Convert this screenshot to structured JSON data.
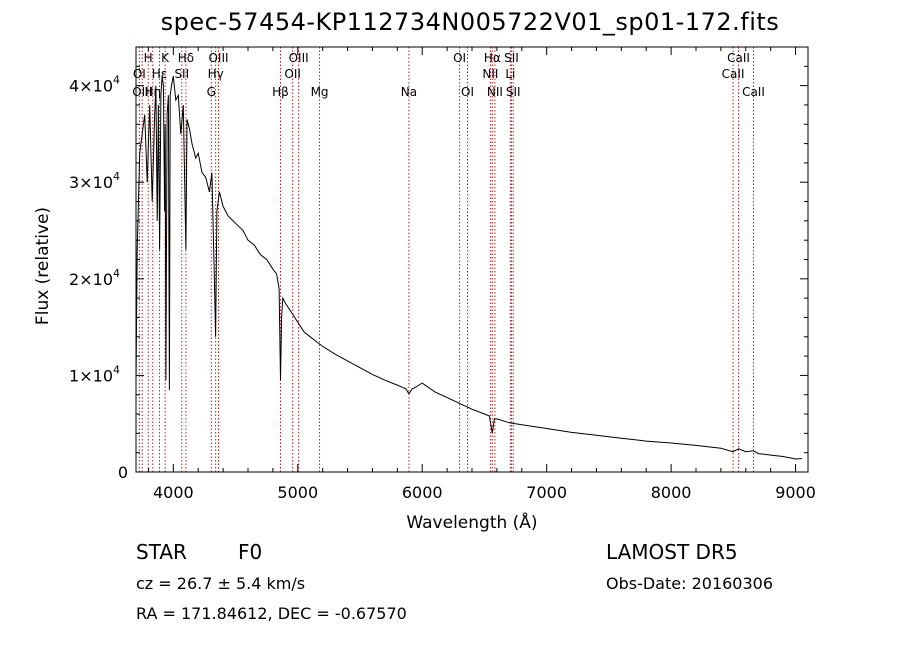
{
  "title": "spec-57454-KP112734N005722V01_sp01-172.fits",
  "info": {
    "class_label": "STAR",
    "subclass": "F0",
    "redshift": "cz = 26.7 ± 5.4 km/s",
    "coords": "RA = 171.84612, DEC =  -0.67570",
    "survey": "LAMOST  DR5",
    "obs_date": "Obs-Date: 20160306"
  },
  "colors": {
    "spectrum": "#000000",
    "lines": "#b22222",
    "axes": "#000000"
  },
  "chart_data": {
    "type": "line",
    "xlabel": "Wavelength (Å)",
    "ylabel": "Flux (relative)",
    "xlim": [
      3700,
      9100
    ],
    "ylim": [
      0,
      44000
    ],
    "xticks": [
      4000,
      5000,
      6000,
      7000,
      8000,
      9000
    ],
    "yticks": [
      {
        "value": 0,
        "base": "0",
        "exp": ""
      },
      {
        "value": 10000,
        "base": "1×10",
        "exp": "4"
      },
      {
        "value": 20000,
        "base": "2×10",
        "exp": "4"
      },
      {
        "value": 30000,
        "base": "3×10",
        "exp": "4"
      },
      {
        "value": 40000,
        "base": "4×10",
        "exp": "4"
      }
    ],
    "spectrum": {
      "x": [
        3700,
        3710,
        3730,
        3750,
        3770,
        3790,
        3810,
        3830,
        3850,
        3860,
        3870,
        3880,
        3890,
        3900,
        3910,
        3920,
        3930,
        3935,
        3940,
        3950,
        3960,
        3968,
        3975,
        3985,
        4000,
        4020,
        4040,
        4060,
        4080,
        4101,
        4110,
        4130,
        4150,
        4180,
        4200,
        4230,
        4260,
        4290,
        4310,
        4330,
        4340,
        4350,
        4370,
        4400,
        4440,
        4480,
        4520,
        4560,
        4600,
        4650,
        4700,
        4750,
        4800,
        4830,
        4850,
        4861,
        4870,
        4880,
        4900,
        4950,
        5000,
        5050,
        5100,
        5150,
        5200,
        5300,
        5400,
        5500,
        5600,
        5700,
        5800,
        5870,
        5893,
        5920,
        5950,
        6000,
        6100,
        6200,
        6300,
        6400,
        6500,
        6540,
        6563,
        6580,
        6600,
        6650,
        6700,
        6800,
        6900,
        7000,
        7200,
        7400,
        7600,
        7800,
        8000,
        8200,
        8400,
        8498,
        8542,
        8600,
        8662,
        8700,
        8800,
        8900,
        9000,
        9050
      ],
      "y": [
        9000,
        23000,
        33000,
        35000,
        37000,
        30000,
        38000,
        28000,
        37000,
        40000,
        26000,
        38000,
        23000,
        39000,
        41000,
        40000,
        27000,
        36000,
        9500,
        37000,
        39000,
        8500,
        39000,
        40000,
        41000,
        38500,
        39000,
        35000,
        38000,
        23000,
        36500,
        35500,
        34000,
        32500,
        33000,
        31000,
        30500,
        29000,
        31000,
        20000,
        14000,
        27000,
        29000,
        27500,
        26500,
        26000,
        25500,
        25000,
        24000,
        23500,
        22500,
        22000,
        21000,
        20500,
        19000,
        9500,
        16000,
        18000,
        17500,
        16500,
        15500,
        14500,
        14000,
        13500,
        13000,
        12200,
        11500,
        10800,
        10100,
        9500,
        9000,
        8600,
        8100,
        8600,
        8800,
        9200,
        8300,
        7700,
        7100,
        6500,
        6000,
        5800,
        4000,
        5500,
        5500,
        5300,
        5100,
        4900,
        4700,
        4500,
        4100,
        3800,
        3500,
        3200,
        3000,
        2750,
        2450,
        2100,
        2400,
        2100,
        2200,
        1900,
        1750,
        1600,
        1350,
        1400
      ]
    },
    "lines_top": [
      {
        "label": "H",
        "x": 3798
      },
      {
        "label": "K",
        "x": 3934
      },
      {
        "label": "Hδ",
        "x": 4101
      },
      {
        "label": "OIII",
        "x": 4363
      },
      {
        "label": "OIII",
        "x": 5007
      },
      {
        "label": "OI",
        "x": 6300
      },
      {
        "label": "Hα",
        "x": 6563
      },
      {
        "label": "SII",
        "x": 6717
      },
      {
        "label": "CaII",
        "x": 8542
      }
    ],
    "lines_mid": [
      {
        "label": "OI",
        "x": 3727
      },
      {
        "label": "Hε",
        "x": 3889
      },
      {
        "label": "SII",
        "x": 4068
      },
      {
        "label": "Hγ",
        "x": 4340
      },
      {
        "label": "OII",
        "x": 4959
      },
      {
        "label": "NII",
        "x": 6548
      },
      {
        "label": "Li",
        "x": 6708
      },
      {
        "label": "CaII",
        "x": 8498
      }
    ],
    "lines_low": [
      {
        "label": "OIII",
        "x": 3750
      },
      {
        "label": "Hη",
        "x": 3835
      },
      {
        "label": "G",
        "x": 4305
      },
      {
        "label": "Hβ",
        "x": 4861
      },
      {
        "label": "Mg",
        "x": 5175
      },
      {
        "label": "Na",
        "x": 5893
      },
      {
        "label": "OI",
        "x": 6364
      },
      {
        "label": "NII",
        "x": 6584
      },
      {
        "label": "SII",
        "x": 6731
      },
      {
        "label": "CaII",
        "x": 8662
      }
    ]
  }
}
